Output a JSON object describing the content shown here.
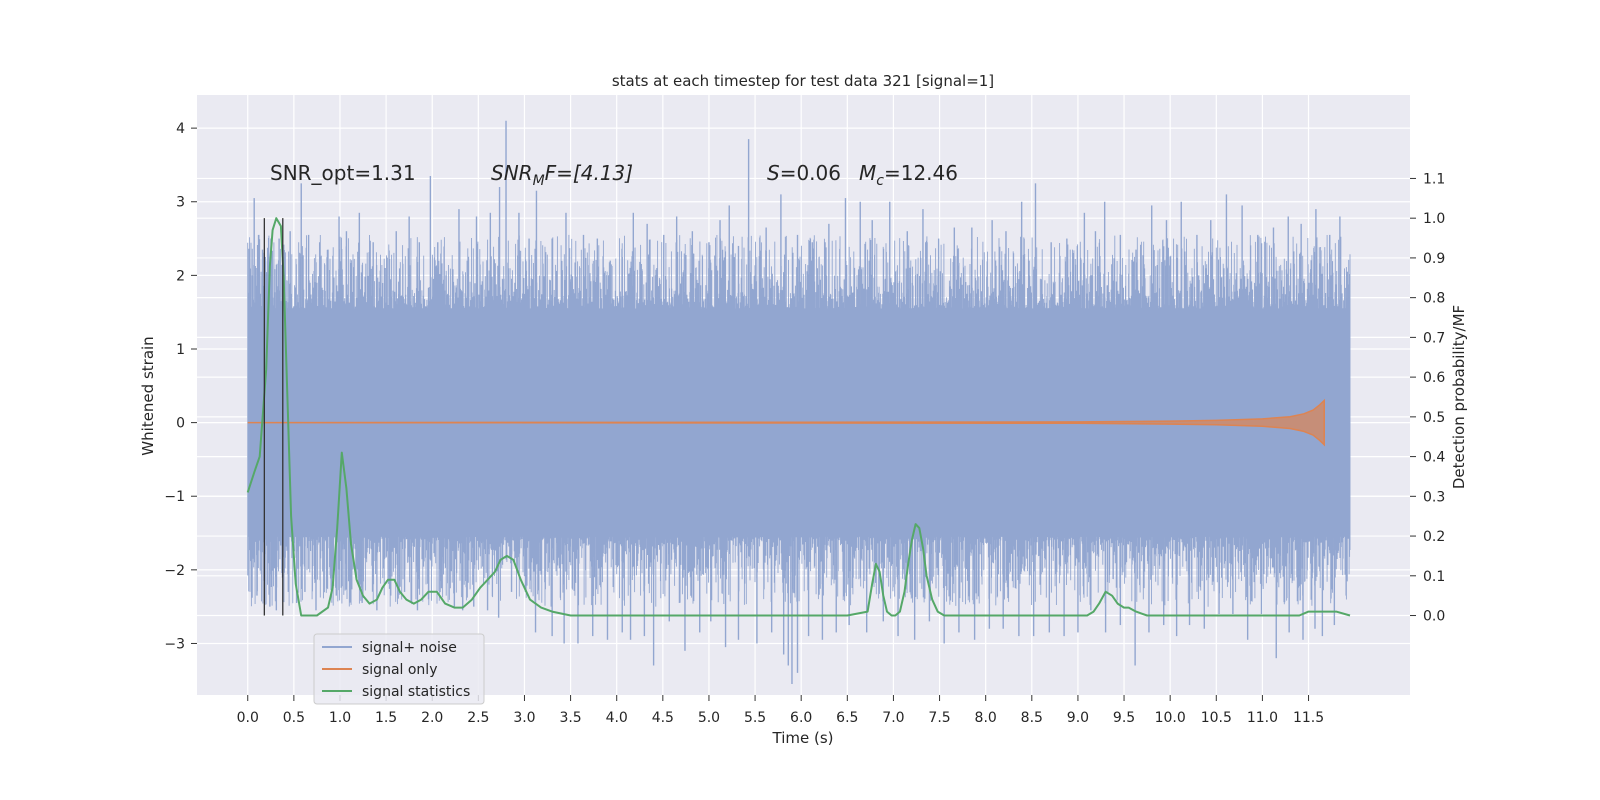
{
  "chart_data": {
    "type": "line",
    "title": "stats at each timestep for test data 321 [signal=1]",
    "xlabel": "Time (s)",
    "ylabel": "Whitened strain",
    "y2label": "Detection probability/MF",
    "xlim": [
      -0.55,
      12.6
    ],
    "ylim": [
      -3.7,
      4.45
    ],
    "y2lim": [
      -0.2,
      1.31
    ],
    "x_ticks": [
      0.0,
      0.5,
      1.0,
      1.5,
      2.0,
      2.5,
      3.0,
      3.5,
      4.0,
      4.5,
      5.0,
      5.5,
      6.0,
      6.5,
      7.0,
      7.5,
      8.0,
      8.5,
      9.0,
      9.5,
      10.0,
      10.5,
      11.0,
      11.5
    ],
    "x_tick_labels": [
      "0.0",
      "0.5",
      "1.0",
      "1.5",
      "2.0",
      "2.5",
      "3.0",
      "3.5",
      "4.0",
      "4.5",
      "5.0",
      "5.5",
      "6.0",
      "6.5",
      "7.0",
      "7.5",
      "8.0",
      "8.5",
      "9.0",
      "9.5",
      "10.0",
      "10.5",
      "11.0",
      "11.5"
    ],
    "y_ticks": [
      4,
      3,
      2,
      1,
      0,
      -1,
      -2,
      -3
    ],
    "y_tick_labels": [
      "4",
      "3",
      "2",
      "1",
      "0",
      "−1",
      "−2",
      "−3"
    ],
    "y2_ticks": [
      1.1,
      1.0,
      0.9,
      0.8,
      0.7,
      0.6,
      0.5,
      0.4,
      0.3,
      0.2,
      0.1,
      0.0
    ],
    "y2_tick_labels": [
      "1.1",
      "1.0",
      "0.9",
      "0.8",
      "0.7",
      "0.6",
      "0.5",
      "0.4",
      "0.3",
      "0.2",
      "0.1",
      "0.0"
    ],
    "grid": true,
    "legend_position": "lower-left",
    "annotations": {
      "snr_opt": "SNR_opt=1.31",
      "snr_mf_var": "SNR",
      "snr_mf_sub": "M",
      "snr_mf_rest": "F=[4.13]",
      "s_var": "S",
      "s_rest": "=0.06",
      "mc_var": "M",
      "mc_sub": "c",
      "mc_rest": "=12.46"
    },
    "vertical_markers": {
      "x": [
        0.18,
        0.38
      ],
      "y2_range": [
        0.0,
        1.0
      ],
      "color": "#333333"
    },
    "series": [
      {
        "name": "signal+ noise",
        "color": "#92a6d0",
        "axis": "left",
        "x_range": [
          0.0,
          11.95
        ],
        "band_quantiles": [
          -1.55,
          1.55
        ],
        "peaks": [
          [
            0.03,
            0.95
          ],
          [
            0.05,
            2.0
          ],
          [
            0.07,
            3.05
          ],
          [
            0.09,
            2.1
          ],
          [
            0.12,
            2.55
          ],
          [
            0.16,
            2.35
          ],
          [
            0.19,
            2.25
          ],
          [
            0.27,
            1.7
          ],
          [
            0.34,
            2.5
          ],
          [
            0.39,
            1.95
          ],
          [
            0.46,
            2.6
          ],
          [
            0.58,
            3.25
          ],
          [
            0.66,
            2.55
          ],
          [
            0.78,
            2.45
          ],
          [
            0.87,
            2.35
          ],
          [
            0.99,
            2.8
          ],
          [
            1.07,
            2.6
          ],
          [
            1.21,
            2.85
          ],
          [
            1.36,
            2.45
          ],
          [
            1.49,
            2.1
          ],
          [
            1.61,
            2.6
          ],
          [
            1.75,
            2.8
          ],
          [
            1.86,
            2.45
          ],
          [
            1.98,
            3.35
          ],
          [
            2.06,
            2.45
          ],
          [
            2.15,
            2.0
          ],
          [
            2.29,
            2.9
          ],
          [
            2.38,
            2.2
          ],
          [
            2.48,
            2.8
          ],
          [
            2.63,
            2.85
          ],
          [
            2.73,
            3.2
          ],
          [
            2.8,
            4.1
          ],
          [
            2.94,
            2.85
          ],
          [
            3.05,
            2.5
          ],
          [
            3.13,
            3.15
          ],
          [
            3.3,
            2.5
          ],
          [
            3.45,
            2.85
          ],
          [
            3.64,
            2.55
          ],
          [
            3.79,
            2.5
          ],
          [
            3.93,
            2.2
          ],
          [
            4.06,
            2.25
          ],
          [
            4.18,
            2.85
          ],
          [
            4.33,
            2.7
          ],
          [
            4.51,
            2.55
          ],
          [
            4.65,
            2.8
          ],
          [
            4.82,
            2.6
          ],
          [
            5.0,
            2.45
          ],
          [
            5.12,
            2.75
          ],
          [
            5.22,
            2.95
          ],
          [
            5.32,
            2.4
          ],
          [
            5.43,
            3.85
          ],
          [
            5.62,
            2.65
          ],
          [
            5.78,
            3.1
          ],
          [
            5.96,
            2.55
          ],
          [
            6.12,
            2.45
          ],
          [
            6.3,
            2.7
          ],
          [
            6.48,
            3.05
          ],
          [
            6.64,
            3.0
          ],
          [
            6.77,
            2.75
          ],
          [
            6.96,
            3.0
          ],
          [
            7.15,
            2.6
          ],
          [
            7.32,
            2.9
          ],
          [
            7.49,
            2.5
          ],
          [
            7.66,
            2.65
          ],
          [
            7.85,
            2.65
          ],
          [
            8.07,
            2.75
          ],
          [
            8.22,
            2.6
          ],
          [
            8.39,
            3.0
          ],
          [
            8.54,
            3.25
          ],
          [
            8.71,
            2.45
          ],
          [
            8.88,
            2.5
          ],
          [
            9.07,
            2.85
          ],
          [
            9.19,
            2.6
          ],
          [
            9.29,
            3.0
          ],
          [
            9.46,
            2.55
          ],
          [
            9.63,
            2.35
          ],
          [
            9.8,
            2.95
          ],
          [
            9.96,
            2.75
          ],
          [
            10.12,
            3.0
          ],
          [
            10.29,
            2.55
          ],
          [
            10.44,
            2.75
          ],
          [
            10.61,
            3.1
          ],
          [
            10.78,
            2.95
          ],
          [
            10.95,
            2.55
          ],
          [
            11.12,
            2.65
          ],
          [
            11.28,
            2.8
          ],
          [
            11.42,
            2.7
          ],
          [
            11.58,
            2.9
          ],
          [
            11.73,
            2.55
          ],
          [
            11.84,
            2.8
          ],
          [
            11.92,
            2.05
          ]
        ],
        "troughs": [
          [
            0.02,
            -1.0
          ],
          [
            0.06,
            -1.85
          ],
          [
            0.1,
            -2.35
          ],
          [
            0.18,
            -2.15
          ],
          [
            0.24,
            -2.5
          ],
          [
            0.31,
            -2.55
          ],
          [
            0.44,
            -2.3
          ],
          [
            0.53,
            -2.45
          ],
          [
            0.62,
            -2.3
          ],
          [
            0.74,
            -2.55
          ],
          [
            0.86,
            -2.25
          ],
          [
            0.96,
            -2.35
          ],
          [
            1.11,
            -2.15
          ],
          [
            1.24,
            -2.45
          ],
          [
            1.4,
            -2.55
          ],
          [
            1.55,
            -2.35
          ],
          [
            1.7,
            -2.3
          ],
          [
            1.84,
            -2.55
          ],
          [
            1.96,
            -2.4
          ],
          [
            2.1,
            -2.25
          ],
          [
            2.24,
            -2.5
          ],
          [
            2.33,
            -2.55
          ],
          [
            2.45,
            -2.5
          ],
          [
            2.6,
            -2.55
          ],
          [
            2.72,
            -2.65
          ],
          [
            2.86,
            -2.3
          ],
          [
            3.01,
            -2.3
          ],
          [
            3.12,
            -2.85
          ],
          [
            3.3,
            -2.9
          ],
          [
            3.43,
            -3.0
          ],
          [
            3.58,
            -3.0
          ],
          [
            3.74,
            -2.9
          ],
          [
            3.9,
            -2.95
          ],
          [
            4.06,
            -2.85
          ],
          [
            4.15,
            -2.95
          ],
          [
            4.3,
            -2.9
          ],
          [
            4.4,
            -3.3
          ],
          [
            4.57,
            -2.7
          ],
          [
            4.74,
            -3.1
          ],
          [
            4.9,
            -2.85
          ],
          [
            5.02,
            -2.7
          ],
          [
            5.18,
            -3.05
          ],
          [
            5.32,
            -2.95
          ],
          [
            5.52,
            -3.0
          ],
          [
            5.68,
            -2.85
          ],
          [
            5.81,
            -3.15
          ],
          [
            5.86,
            -3.3
          ],
          [
            5.9,
            -3.55
          ],
          [
            5.96,
            -3.4
          ],
          [
            6.08,
            -2.9
          ],
          [
            6.23,
            -2.95
          ],
          [
            6.38,
            -2.85
          ],
          [
            6.52,
            -2.75
          ],
          [
            6.71,
            -2.85
          ],
          [
            6.89,
            -2.7
          ],
          [
            7.05,
            -2.9
          ],
          [
            7.23,
            -2.95
          ],
          [
            7.39,
            -2.7
          ],
          [
            7.55,
            -3.0
          ],
          [
            7.71,
            -2.85
          ],
          [
            7.88,
            -2.95
          ],
          [
            8.04,
            -2.8
          ],
          [
            8.19,
            -2.8
          ],
          [
            8.36,
            -2.9
          ],
          [
            8.52,
            -2.9
          ],
          [
            8.69,
            -2.85
          ],
          [
            8.85,
            -2.9
          ],
          [
            9.0,
            -2.85
          ],
          [
            9.14,
            -2.55
          ],
          [
            9.3,
            -2.85
          ],
          [
            9.46,
            -2.75
          ],
          [
            9.62,
            -3.3
          ],
          [
            9.77,
            -2.85
          ],
          [
            9.93,
            -2.75
          ],
          [
            10.07,
            -2.9
          ],
          [
            10.21,
            -2.75
          ],
          [
            10.37,
            -2.8
          ],
          [
            10.53,
            -2.6
          ],
          [
            10.68,
            -2.6
          ],
          [
            10.84,
            -2.95
          ],
          [
            10.99,
            -2.6
          ],
          [
            11.15,
            -3.2
          ],
          [
            11.29,
            -2.85
          ],
          [
            11.44,
            -2.95
          ],
          [
            11.57,
            -2.8
          ],
          [
            11.65,
            -2.9
          ],
          [
            11.78,
            -2.75
          ],
          [
            11.94,
            -1.5
          ]
        ]
      },
      {
        "name": "signal only",
        "color": "#dd8452",
        "axis": "left",
        "x": [
          0.0,
          6.0,
          9.0,
          10.0,
          10.5,
          11.0,
          11.3,
          11.45,
          11.55,
          11.62,
          11.67
        ],
        "envelope": [
          0.0,
          0.005,
          0.01,
          0.02,
          0.03,
          0.05,
          0.08,
          0.12,
          0.17,
          0.24,
          0.3
        ]
      },
      {
        "name": "signal statistics",
        "color": "#55a868",
        "axis": "right",
        "x": [
          0.0,
          0.07,
          0.13,
          0.2,
          0.24,
          0.27,
          0.31,
          0.36,
          0.39,
          0.43,
          0.47,
          0.52,
          0.58,
          0.65,
          0.75,
          0.87,
          0.92,
          0.97,
          1.02,
          1.07,
          1.12,
          1.18,
          1.25,
          1.32,
          1.4,
          1.46,
          1.52,
          1.59,
          1.65,
          1.72,
          1.8,
          1.88,
          1.96,
          2.05,
          2.14,
          2.24,
          2.33,
          2.43,
          2.52,
          2.6,
          2.68,
          2.74,
          2.81,
          2.88,
          2.96,
          3.06,
          3.18,
          3.3,
          3.5,
          4.0,
          5.0,
          6.0,
          6.5,
          6.72,
          6.77,
          6.81,
          6.85,
          6.89,
          6.93,
          6.98,
          7.02,
          7.07,
          7.12,
          7.16,
          7.2,
          7.24,
          7.28,
          7.32,
          7.36,
          7.42,
          7.48,
          7.55,
          7.65,
          7.8,
          8.0,
          8.5,
          9.0,
          9.1,
          9.17,
          9.23,
          9.3,
          9.37,
          9.43,
          9.5,
          9.55,
          9.63,
          9.75,
          9.9,
          10.1,
          10.3,
          10.6,
          10.9,
          11.1,
          11.25,
          11.4,
          11.5,
          11.6,
          11.7,
          11.8,
          11.95
        ],
        "values": [
          0.31,
          0.36,
          0.4,
          0.62,
          0.88,
          0.97,
          1.0,
          0.98,
          0.85,
          0.55,
          0.25,
          0.08,
          0.0,
          0.0,
          0.0,
          0.02,
          0.07,
          0.22,
          0.41,
          0.32,
          0.18,
          0.09,
          0.05,
          0.03,
          0.04,
          0.07,
          0.09,
          0.09,
          0.06,
          0.04,
          0.03,
          0.04,
          0.06,
          0.06,
          0.03,
          0.02,
          0.02,
          0.04,
          0.07,
          0.09,
          0.11,
          0.14,
          0.15,
          0.14,
          0.09,
          0.04,
          0.02,
          0.01,
          0.0,
          0.0,
          0.0,
          0.0,
          0.0,
          0.01,
          0.08,
          0.13,
          0.11,
          0.05,
          0.01,
          0.0,
          0.0,
          0.01,
          0.06,
          0.13,
          0.19,
          0.23,
          0.22,
          0.17,
          0.1,
          0.04,
          0.01,
          0.0,
          0.0,
          0.0,
          0.0,
          0.0,
          0.0,
          0.0,
          0.01,
          0.03,
          0.06,
          0.05,
          0.03,
          0.02,
          0.02,
          0.01,
          0.0,
          0.0,
          0.0,
          0.0,
          0.0,
          0.0,
          0.0,
          0.0,
          0.0,
          0.01,
          0.01,
          0.01,
          0.01,
          0.0
        ]
      }
    ]
  }
}
